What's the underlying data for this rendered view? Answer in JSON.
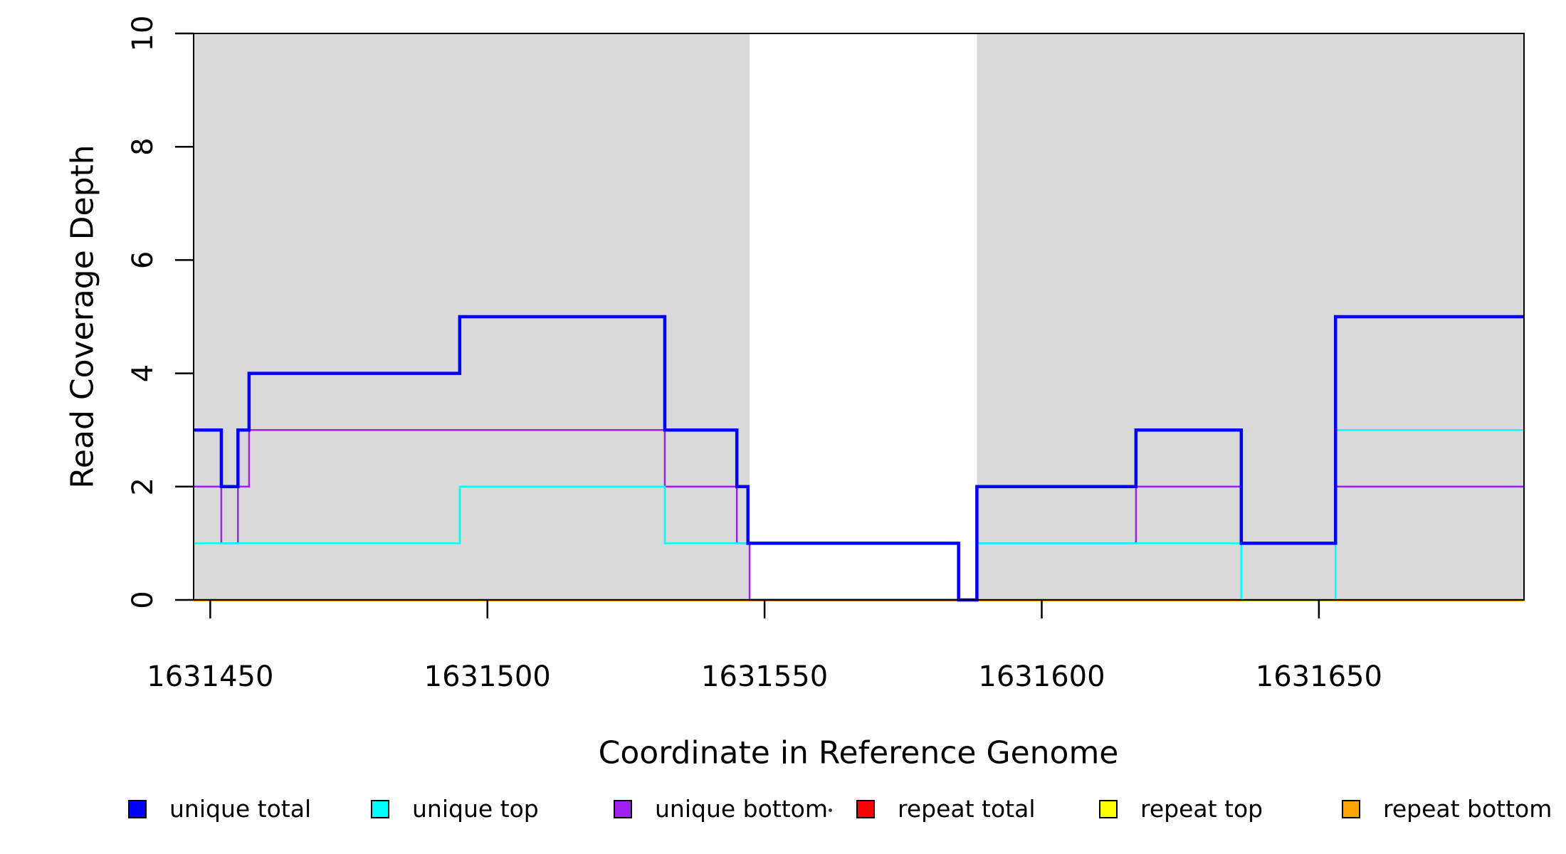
{
  "figure": {
    "xlabel": "Coordinate in Reference Genome",
    "ylabel": "Read Coverage Depth"
  },
  "chart_data": {
    "type": "line",
    "step_style": "step-after",
    "title": "",
    "xlabel": "Coordinate in Reference Genome",
    "ylabel": "Read Coverage Depth",
    "xlim": [
      1631447,
      1631687
    ],
    "ylim": [
      0,
      10
    ],
    "x_ticks": [
      1631450,
      1631500,
      1631550,
      1631600,
      1631650
    ],
    "y_ticks": [
      0,
      2,
      4,
      6,
      8,
      10
    ],
    "grid": false,
    "background_color": "#ffffff",
    "shaded_region_color": "#d9d9d9",
    "shaded_regions": [
      {
        "x0": 1631447,
        "x1": 1631547.3
      },
      {
        "x0": 1631588.3,
        "x1": 1631687
      }
    ],
    "series": [
      {
        "name": "repeat total",
        "color": "#ff0000",
        "line_width": 2.5,
        "points": [
          [
            1631447,
            0
          ]
        ]
      },
      {
        "name": "repeat top",
        "color": "#ffff00",
        "line_width": 2.5,
        "points": [
          [
            1631447,
            0
          ]
        ]
      },
      {
        "name": "repeat bottom",
        "color": "#ffa500",
        "line_width": 4,
        "points": [
          [
            1631447,
            0
          ]
        ]
      },
      {
        "name": "unique bottom",
        "color": "#a020f0",
        "line_width": 2.5,
        "points": [
          [
            1631447,
            2
          ],
          [
            1631452,
            1
          ],
          [
            1631455,
            2
          ],
          [
            1631457,
            3
          ],
          [
            1631532,
            2
          ],
          [
            1631545,
            1
          ],
          [
            1631547.3,
            0
          ],
          [
            1631588.3,
            1
          ],
          [
            1631617,
            2
          ],
          [
            1631636,
            1
          ],
          [
            1631653,
            2
          ]
        ]
      },
      {
        "name": "unique top",
        "color": "#00ffff",
        "line_width": 2.5,
        "points": [
          [
            1631447,
            1
          ],
          [
            1631495,
            2
          ],
          [
            1631532,
            1
          ],
          [
            1631585,
            0
          ],
          [
            1631588.3,
            1
          ],
          [
            1631636,
            0
          ],
          [
            1631653,
            3
          ]
        ]
      },
      {
        "name": "unique total",
        "color": "#0000ff",
        "line_width": 4.5,
        "points": [
          [
            1631447,
            3
          ],
          [
            1631452,
            2
          ],
          [
            1631455,
            3
          ],
          [
            1631457,
            4
          ],
          [
            1631495,
            5
          ],
          [
            1631532,
            3
          ],
          [
            1631545,
            2
          ],
          [
            1631547,
            1
          ],
          [
            1631585,
            0
          ],
          [
            1631588.3,
            2
          ],
          [
            1631617,
            3
          ],
          [
            1631636,
            1
          ],
          [
            1631653,
            5
          ]
        ]
      }
    ],
    "legend": {
      "position": "bottom",
      "items": [
        {
          "label": "unique total",
          "color": "#0000ff"
        },
        {
          "label": "unique top",
          "color": "#00ffff"
        },
        {
          "label": "unique bottom",
          "color": "#a020f0"
        },
        {
          "label": "repeat total",
          "color": "#ff0000"
        },
        {
          "label": "repeat top",
          "color": "#ffff00"
        },
        {
          "label": "repeat bottom",
          "color": "#ffa500"
        }
      ]
    }
  }
}
